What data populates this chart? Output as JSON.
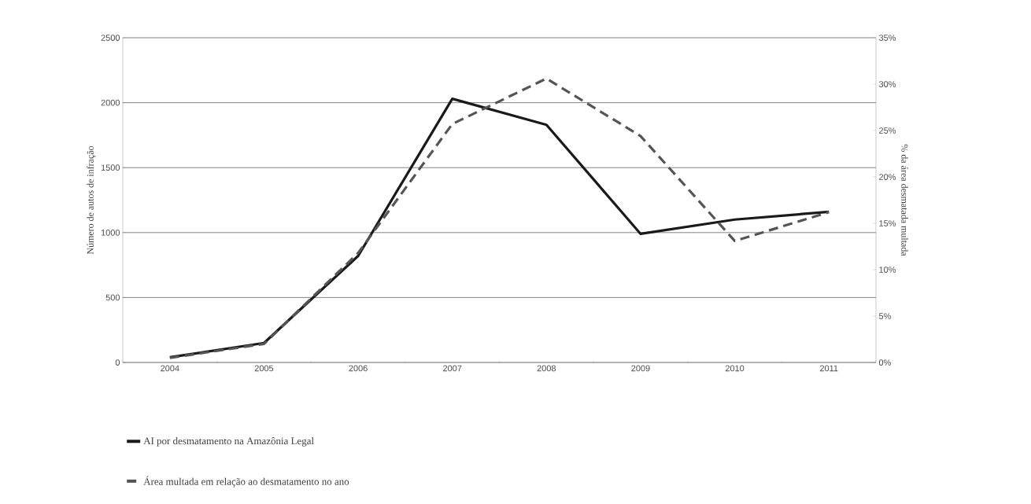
{
  "chart_data": {
    "type": "line",
    "categories": [
      "2004",
      "2005",
      "2006",
      "2007",
      "2008",
      "2009",
      "2010",
      "2011"
    ],
    "series": [
      {
        "name": "AI por desmatamento na Amazônia Legal",
        "color": "#1a1a1a",
        "line_style": "solid",
        "values": [
          40,
          150,
          820,
          2030,
          1830,
          990,
          1100,
          1160
        ]
      },
      {
        "name": "Área multada em relação ao desmatamento no ano",
        "color": "#555555",
        "line_style": "dashed",
        "axis": "y2",
        "values": [
          0.5,
          2.0,
          11.8,
          25.7,
          30.6,
          24.4,
          13.1,
          16.2
        ]
      }
    ],
    "ylabel": "Número de autos de infração",
    "y2label": "% da área desmatada multada",
    "ylim": [
      0,
      2500
    ],
    "yticks": [
      0,
      500,
      1000,
      1500,
      2000,
      2500
    ],
    "y2lim": [
      0,
      35
    ],
    "y2ticks": [
      {
        "value": 0,
        "label": "0%"
      },
      {
        "value": 5,
        "label": "5%"
      },
      {
        "value": 10,
        "label": "10%"
      },
      {
        "value": 15,
        "label": "15%"
      },
      {
        "value": 20,
        "label": "20%"
      },
      {
        "value": 25,
        "label": "25%"
      },
      {
        "value": 30,
        "label": "30%"
      },
      {
        "value": 35,
        "label": "35%"
      }
    ],
    "grid": "y",
    "legend": "bottom left",
    "marker": "none"
  }
}
